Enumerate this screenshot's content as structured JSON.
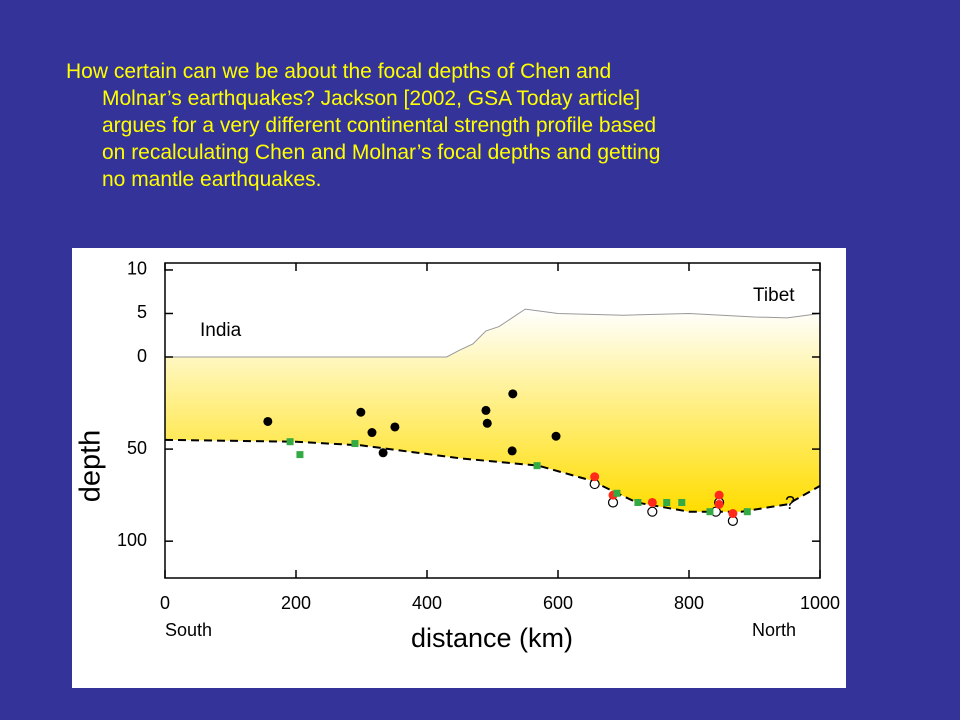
{
  "slide_text": {
    "lines": [
      "How certain can we be about the focal depths of Chen and",
      "Molnar’s earthquakes? Jackson [2002, GSA Today article]",
      "argues for a very different continental strength profile based",
      "on recalculating Chen and Molnar’s focal depths and getting",
      "no mantle earthquakes."
    ]
  },
  "chart_data": {
    "type": "scatter",
    "xlabel": "distance (km)",
    "ylabel": "depth",
    "xlim": [
      0,
      1000
    ],
    "xticks": [
      0,
      200,
      400,
      600,
      800,
      1000
    ],
    "ylim": [
      0,
      120
    ],
    "yticks": [
      50,
      100
    ],
    "elevation": {
      "ylim": [
        0,
        10.8
      ],
      "yticks": [
        0,
        5,
        10
      ]
    },
    "annotations": {
      "south": "South",
      "north": "North",
      "india": "India",
      "tibet": "Tibet",
      "query": "?"
    },
    "topography": {
      "color": "#999999",
      "x": [
        0,
        430,
        450,
        470,
        490,
        510,
        530,
        550,
        600,
        700,
        800,
        900,
        950,
        1000
      ],
      "values": [
        0,
        0,
        0.8,
        1.5,
        3,
        3.5,
        4.5,
        5.5,
        5,
        4.8,
        5,
        4.6,
        4.5,
        5
      ]
    },
    "moho": {
      "color": "#000000",
      "x": [
        0,
        200,
        300,
        450,
        570,
        650,
        720,
        800,
        880,
        950,
        1000
      ],
      "values": [
        45,
        46,
        48,
        55,
        59,
        67,
        79,
        84,
        84,
        80,
        70
      ]
    },
    "series": [
      {
        "marker": "circle",
        "color": "#000000",
        "x": [
          157,
          299,
          316,
          333,
          351,
          490,
          492,
          531,
          530,
          597
        ],
        "values": [
          35,
          30,
          41,
          52,
          38,
          29,
          36,
          20,
          51,
          43
        ]
      },
      {
        "marker": "open-circle",
        "color": "#000000",
        "x": [
          656,
          684,
          744,
          846,
          841,
          867
        ],
        "values": [
          69,
          79,
          84,
          79,
          84,
          89
        ]
      },
      {
        "marker": "circle",
        "color": "#ff2a1a",
        "x": [
          656,
          684,
          744,
          846,
          846,
          867
        ],
        "values": [
          65,
          75,
          79,
          75,
          80,
          85
        ]
      },
      {
        "marker": "square",
        "color": "#33aa44",
        "x": [
          191,
          206,
          290,
          568,
          690,
          722,
          766,
          789,
          832,
          889
        ],
        "values": [
          46,
          53,
          47,
          59,
          74,
          79,
          79,
          79,
          84,
          84
        ]
      }
    ]
  }
}
